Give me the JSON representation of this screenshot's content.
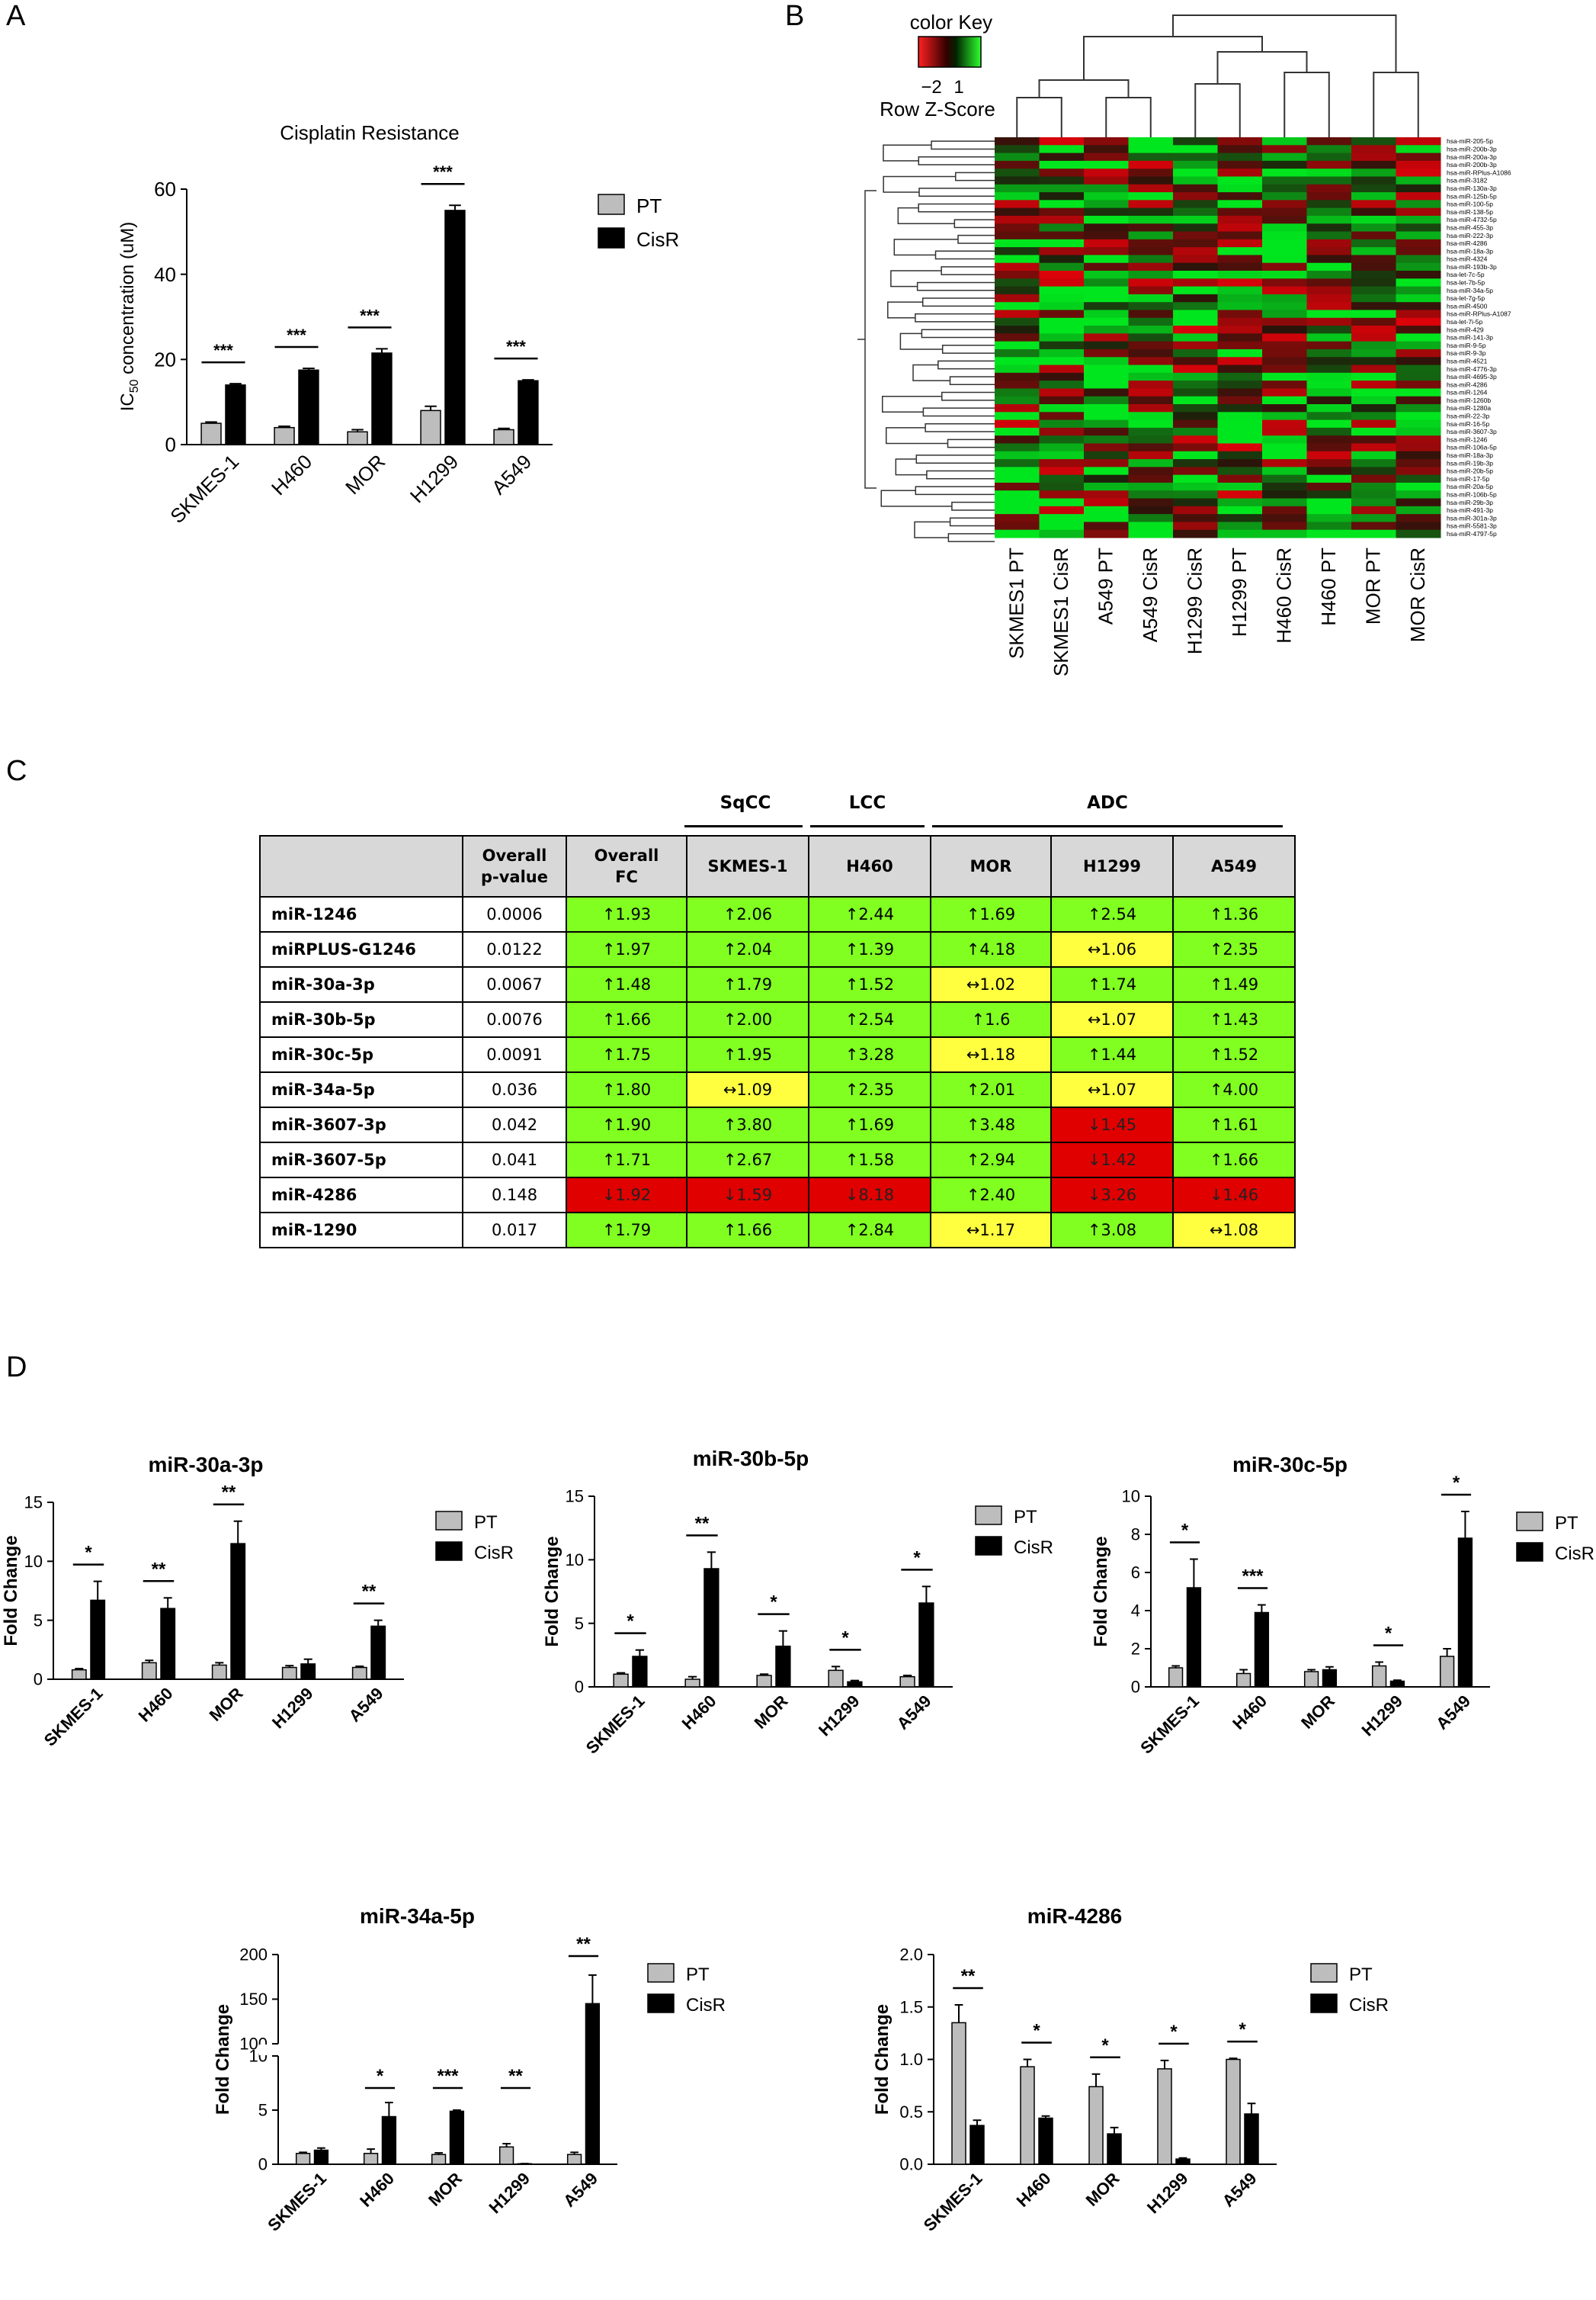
{
  "panels": {
    "a": "A",
    "b": "B",
    "c": "C",
    "d": "D"
  },
  "colors": {
    "pt": "#bdbdbd",
    "cisr": "#000000",
    "green": "#80ff20",
    "yellow": "#ffff40",
    "red": "#e00000"
  },
  "chart_data": [
    {
      "id": "ic50",
      "type": "bar",
      "title": "Cisplatin Resistance",
      "ylabel_main": "IC",
      "ylabel_sub": "50",
      "ylabel_rest": " concentration (uM)",
      "categories": [
        "SKMES-1",
        "H460",
        "MOR",
        "H1299",
        "A549"
      ],
      "ylim": [
        0,
        60
      ],
      "ticks": [
        0,
        20,
        40,
        60
      ],
      "series": [
        {
          "name": "PT",
          "values": [
            5,
            4,
            3,
            8,
            3.5
          ],
          "err": [
            0.3,
            0.3,
            0.5,
            1,
            0.3
          ]
        },
        {
          "name": "CisR",
          "values": [
            14,
            17.5,
            21.5,
            55,
            15
          ],
          "err": [
            0.3,
            0.4,
            1,
            1.2,
            0.2
          ]
        }
      ],
      "sig": [
        "***",
        "***",
        "***",
        "***",
        "***"
      ]
    },
    {
      "id": "heatmap",
      "type": "heatmap",
      "key_title": "color Key",
      "key_ticks": [
        "−2",
        "1"
      ],
      "key_label": "Row Z-Score",
      "columns": [
        "SKMES1 PT",
        "SKMES1 CisR",
        "A549 PT",
        "A549 CisR",
        "H1299 CisR",
        "H1299 PT",
        "H460 CisR",
        "H460 PT",
        "MOR PT",
        "MOR CisR"
      ],
      "rows": [
        "hsa-miR-205-5p",
        "hsa-miR-200b-3p",
        "hsa-miR-200a-3p",
        "hsa-miR-200b-3p",
        "hsa-miR-RPlus-A1086",
        "hsa-miR-3182",
        "hsa-miR-130a-3p",
        "hsa-miR-125b-5p",
        "hsa-miR-100-5p",
        "hsa-miR-138-5p",
        "hsa-miR-4732-5p",
        "hsa-miR-455-3p",
        "hsa-miR-222-3p",
        "hsa-miR-4286",
        "hsa-miR-18a-3p",
        "hsa-miR-4324",
        "hsa-miR-193b-3p",
        "hsa-let-7c-5p",
        "hsa-let-7b-5p",
        "hsa-miR-34a-5p",
        "hsa-let-7g-5p",
        "hsa-miR-4500",
        "hsa-miR-RPlus-A1087",
        "hsa-let-7i-5p",
        "hsa-miR-429",
        "hsa-miR-141-3p",
        "hsa-miR-9-5p",
        "hsa-miR-9-3p",
        "hsa-miR-4521",
        "hsa-miR-4776-3p",
        "hsa-miR-4695-3p",
        "hsa-miR-4286",
        "hsa-miR-1264",
        "hsa-miR-1260b",
        "hsa-miR-1280a",
        "hsa-miR-22-3p",
        "hsa-miR-16-5p",
        "hsa-miR-3607-3p",
        "hsa-miR-1246",
        "hsa-miR-106a-5p",
        "hsa-miR-18a-3p",
        "hsa-miR-19b-3p",
        "hsa-miR-20b-5p",
        "hsa-miR-17-5p",
        "hsa-miR-20a-5p",
        "hsa-miR-106b-5p",
        "hsa-miR-29b-3p",
        "hsa-miR-491-3p",
        "hsa-miR-301a-3p",
        "hsa-miR-5581-3p",
        "hsa-miR-4797-5p"
      ]
    },
    {
      "id": "table",
      "type": "table",
      "groups": [
        "SqCC",
        "LCC",
        "ADC"
      ],
      "header": {
        "blank": "",
        "p1": "Overall",
        "p2": "p-value",
        "f1": "Overall",
        "f2": "FC",
        "c1": "SKMES-1",
        "c2": "H460",
        "c3": "MOR",
        "c4": "H1299",
        "c5": "A549"
      },
      "rows": [
        {
          "name": "miR-1246",
          "p": "0.0006",
          "fc": "↑1.93",
          "v": [
            "↑2.06",
            "↑2.44",
            "↑1.69",
            "↑2.54",
            "↑1.36"
          ],
          "c": [
            "g",
            "g",
            "g",
            "g",
            "g",
            "g"
          ]
        },
        {
          "name": "miRPLUS-G1246",
          "p": "0.0122",
          "fc": "↑1.97",
          "v": [
            "↑2.04",
            "↑1.39",
            "↑4.18",
            "↔1.06",
            "↑2.35"
          ],
          "c": [
            "g",
            "g",
            "g",
            "g",
            "y",
            "g"
          ]
        },
        {
          "name": "miR-30a-3p",
          "p": "0.0067",
          "fc": "↑1.48",
          "v": [
            "↑1.79",
            "↑1.52",
            "↔1.02",
            "↑1.74",
            "↑1.49"
          ],
          "c": [
            "g",
            "g",
            "g",
            "y",
            "g",
            "g"
          ]
        },
        {
          "name": "miR-30b-5p",
          "p": "0.0076",
          "fc": "↑1.66",
          "v": [
            "↑2.00",
            "↑2.54",
            "↑1.6",
            "↔1.07",
            "↑1.43"
          ],
          "c": [
            "g",
            "g",
            "g",
            "g",
            "y",
            "g"
          ]
        },
        {
          "name": "miR-30c-5p",
          "p": "0.0091",
          "fc": "↑1.75",
          "v": [
            "↑1.95",
            "↑3.28",
            "↔1.18",
            "↑1.44",
            "↑1.52"
          ],
          "c": [
            "g",
            "g",
            "g",
            "y",
            "g",
            "g"
          ]
        },
        {
          "name": "miR-34a-5p",
          "p": "0.036",
          "fc": "↑1.80",
          "v": [
            "↔1.09",
            "↑2.35",
            "↑2.01",
            "↔1.07",
            "↑4.00"
          ],
          "c": [
            "g",
            "y",
            "g",
            "g",
            "y",
            "g"
          ]
        },
        {
          "name": "miR-3607-3p",
          "p": "0.042",
          "fc": "↑1.90",
          "v": [
            "↑3.80",
            "↑1.69",
            "↑3.48",
            "↓1.45",
            "↑1.61"
          ],
          "c": [
            "g",
            "g",
            "g",
            "g",
            "r",
            "g"
          ]
        },
        {
          "name": "miR-3607-5p",
          "p": "0.041",
          "fc": "↑1.71",
          "v": [
            "↑2.67",
            "↑1.58",
            "↑2.94",
            "↓1.42",
            "↑1.66"
          ],
          "c": [
            "g",
            "g",
            "g",
            "g",
            "r",
            "g"
          ]
        },
        {
          "name": "miR-4286",
          "p": "0.148",
          "fc": "↓1.92",
          "v": [
            "↓1.59",
            "↓8.18",
            "↑2.40",
            "↓3.26",
            "↓1.46"
          ],
          "c": [
            "r",
            "r",
            "r",
            "g",
            "r",
            "r"
          ]
        },
        {
          "name": "miR-1290",
          "p": "0.017",
          "fc": "↑1.79",
          "v": [
            "↑1.66",
            "↑2.84",
            "↔1.17",
            "↑3.08",
            "↔1.08"
          ],
          "c": [
            "g",
            "g",
            "g",
            "y",
            "g",
            "y"
          ]
        }
      ]
    },
    {
      "id": "d1",
      "type": "bar",
      "title": "miR-30a-3p",
      "ylabel": "Fold Change",
      "categories": [
        "SKMES-1",
        "H460",
        "MOR",
        "H1299",
        "A549"
      ],
      "ylim": [
        0,
        15
      ],
      "ticks": [
        0,
        5,
        10,
        15
      ],
      "series": [
        {
          "name": "PT",
          "values": [
            0.8,
            1.4,
            1.2,
            1.0,
            1.0
          ],
          "err": [
            0.1,
            0.2,
            0.2,
            0.15,
            0.1
          ]
        },
        {
          "name": "CisR",
          "values": [
            6.7,
            6.0,
            11.5,
            1.3,
            4.5
          ],
          "err": [
            1.6,
            0.9,
            1.9,
            0.4,
            0.5
          ]
        }
      ],
      "sig": [
        "*",
        "**",
        "**",
        "",
        "**"
      ]
    },
    {
      "id": "d2",
      "type": "bar",
      "title": "miR-30b-5p",
      "ylabel": "Fold Change",
      "categories": [
        "SKMES-1",
        "H460",
        "MOR",
        "H1299",
        "A549"
      ],
      "ylim": [
        0,
        15
      ],
      "ticks": [
        0,
        5,
        10,
        15
      ],
      "series": [
        {
          "name": "PT",
          "values": [
            1.0,
            0.6,
            0.9,
            1.3,
            0.8
          ],
          "err": [
            0.1,
            0.2,
            0.1,
            0.3,
            0.1
          ]
        },
        {
          "name": "CisR",
          "values": [
            2.4,
            9.3,
            3.2,
            0.4,
            6.6
          ],
          "err": [
            0.5,
            1.3,
            1.2,
            0.1,
            1.3
          ]
        }
      ],
      "sig": [
        "*",
        "**",
        "*",
        "*",
        "*"
      ]
    },
    {
      "id": "d3",
      "type": "bar",
      "title": "miR-30c-5p",
      "ylabel": "Fold Change",
      "categories": [
        "SKMES-1",
        "H460",
        "MOR",
        "H1299",
        "A549"
      ],
      "ylim": [
        0,
        10
      ],
      "ticks": [
        0,
        2,
        4,
        6,
        8,
        10
      ],
      "series": [
        {
          "name": "PT",
          "values": [
            1.0,
            0.7,
            0.8,
            1.1,
            1.6
          ],
          "err": [
            0.1,
            0.2,
            0.1,
            0.2,
            0.4
          ]
        },
        {
          "name": "CisR",
          "values": [
            5.2,
            3.9,
            0.9,
            0.3,
            7.8
          ],
          "err": [
            1.5,
            0.4,
            0.15,
            0.05,
            1.4
          ]
        }
      ],
      "sig": [
        "*",
        "***",
        "",
        "*",
        "*"
      ]
    },
    {
      "id": "d4",
      "type": "bar",
      "title": "miR-34a-5p",
      "ylabel": "Fold Change",
      "categories": [
        "SKMES-1",
        "H460",
        "MOR",
        "H1299",
        "A549"
      ],
      "ylim": [
        0,
        200
      ],
      "ticks": [
        0,
        5,
        10,
        100,
        150,
        200
      ],
      "series": [
        {
          "name": "PT",
          "values": [
            1.0,
            1.0,
            0.9,
            1.6,
            0.9
          ],
          "err": [
            0.1,
            0.4,
            0.15,
            0.3,
            0.2
          ]
        },
        {
          "name": "CisR",
          "values": [
            1.3,
            4.4,
            4.9,
            0.05,
            145
          ],
          "err": [
            0.2,
            1.3,
            0.1,
            0.01,
            32
          ]
        }
      ],
      "sig": [
        "",
        "*",
        "***",
        "**",
        "**"
      ]
    },
    {
      "id": "d5",
      "type": "bar",
      "title": "miR-4286",
      "ylabel": "Fold Change",
      "categories": [
        "SKMES-1",
        "H460",
        "MOR",
        "H1299",
        "A549"
      ],
      "ylim": [
        0,
        2.0
      ],
      "ticks": [
        "0.0",
        "0.5",
        "1.0",
        "1.5",
        "2.0"
      ],
      "series": [
        {
          "name": "PT",
          "values": [
            1.35,
            0.93,
            0.74,
            0.91,
            1.0
          ],
          "err": [
            0.17,
            0.07,
            0.12,
            0.08,
            0.01
          ]
        },
        {
          "name": "CisR",
          "values": [
            0.37,
            0.44,
            0.29,
            0.05,
            0.48
          ],
          "err": [
            0.05,
            0.02,
            0.06,
            0.01,
            0.1
          ]
        }
      ],
      "sig": [
        "**",
        "*",
        "*",
        "*",
        "*"
      ]
    }
  ]
}
